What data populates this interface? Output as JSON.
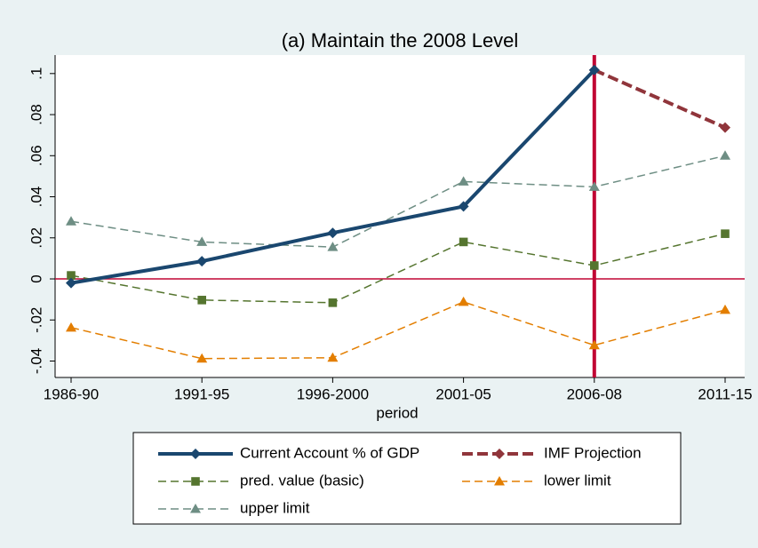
{
  "chart_data": {
    "type": "line",
    "title": "(a) Maintain the 2008 Level",
    "x_label": "period",
    "categories": [
      "1986-90",
      "1991-95",
      "1996-2000",
      "2001-05",
      "2006-08",
      "2011-15"
    ],
    "series": [
      {
        "name": "Current Account % of GDP",
        "color": "#1a476f",
        "marker": "diamond",
        "dashed": false,
        "values": [
          -0.002,
          0.0086,
          0.0224,
          0.0353,
          0.1017,
          null
        ]
      },
      {
        "name": "IMF Projection",
        "color": "#90353b",
        "marker": "diamond",
        "dashed": true,
        "values": [
          null,
          null,
          null,
          null,
          0.1017,
          0.0737
        ]
      },
      {
        "name": "pred. value (basic)",
        "color": "#55752f",
        "marker": "square",
        "dashed": true,
        "values": [
          0.0017,
          -0.0103,
          -0.0116,
          0.018,
          0.0065,
          0.022
        ]
      },
      {
        "name": "lower limit",
        "color": "#e37e00",
        "marker": "triangle",
        "dashed": true,
        "values": [
          -0.0237,
          -0.0388,
          -0.0384,
          -0.0112,
          -0.0323,
          -0.0151
        ]
      },
      {
        "name": "upper limit",
        "color": "#6e8e84",
        "marker": "triangle",
        "dashed": true,
        "values": [
          0.028,
          0.018,
          0.0155,
          0.0474,
          0.0448,
          0.06
        ]
      }
    ],
    "ylim": [
      -0.048,
      0.109
    ],
    "yticks": [
      {
        "value": -0.04,
        "label": "-.04"
      },
      {
        "value": -0.02,
        "label": "-.02"
      },
      0,
      {
        "value": 0.02,
        "label": ".02"
      },
      {
        "value": 0.04,
        "label": ".04"
      },
      {
        "value": 0.06,
        "label": ".06"
      },
      {
        "value": 0.08,
        "label": ".08"
      },
      {
        "value": 0.1,
        "label": ".1"
      }
    ],
    "yline": 0,
    "xline": "2006-08",
    "reference_color": "#c10534",
    "grid": false
  }
}
